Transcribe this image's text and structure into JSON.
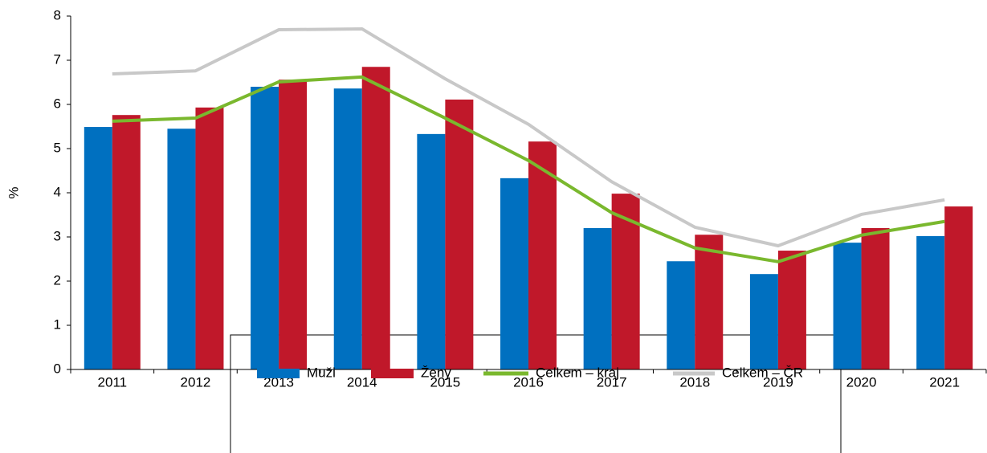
{
  "chart_data": {
    "type": "bar_line",
    "y_label": "%",
    "categories": [
      "2011",
      "2012",
      "2013",
      "2014",
      "2015",
      "2016",
      "2017",
      "2018",
      "2019",
      "2020",
      "2021"
    ],
    "series": [
      {
        "name": "Muži",
        "kind": "bar",
        "color": "#0070c0",
        "values": [
          5.49,
          5.45,
          6.4,
          6.36,
          5.33,
          4.33,
          3.2,
          2.45,
          2.16,
          2.87,
          3.02
        ]
      },
      {
        "name": "Ženy",
        "kind": "bar",
        "color": "#c0182a",
        "values": [
          5.76,
          5.93,
          6.56,
          6.85,
          6.11,
          5.16,
          3.98,
          3.05,
          2.69,
          3.2,
          3.69
        ]
      },
      {
        "name": "Celkem – kraj",
        "kind": "line",
        "color": "#7ab82e",
        "values": [
          5.62,
          5.69,
          6.51,
          6.62,
          5.69,
          4.73,
          3.55,
          2.75,
          2.44,
          3.04,
          3.35
        ]
      },
      {
        "name": "Celkem – ČR",
        "kind": "line",
        "color": "#c8c8c8",
        "values": [
          6.69,
          6.76,
          7.69,
          7.71,
          6.58,
          5.55,
          4.25,
          3.22,
          2.8,
          3.51,
          3.84
        ]
      }
    ],
    "ylim": [
      0,
      8
    ],
    "yticks": [
      0,
      1,
      2,
      3,
      4,
      5,
      6,
      7,
      8
    ],
    "grid": false,
    "legend": "bottom"
  }
}
